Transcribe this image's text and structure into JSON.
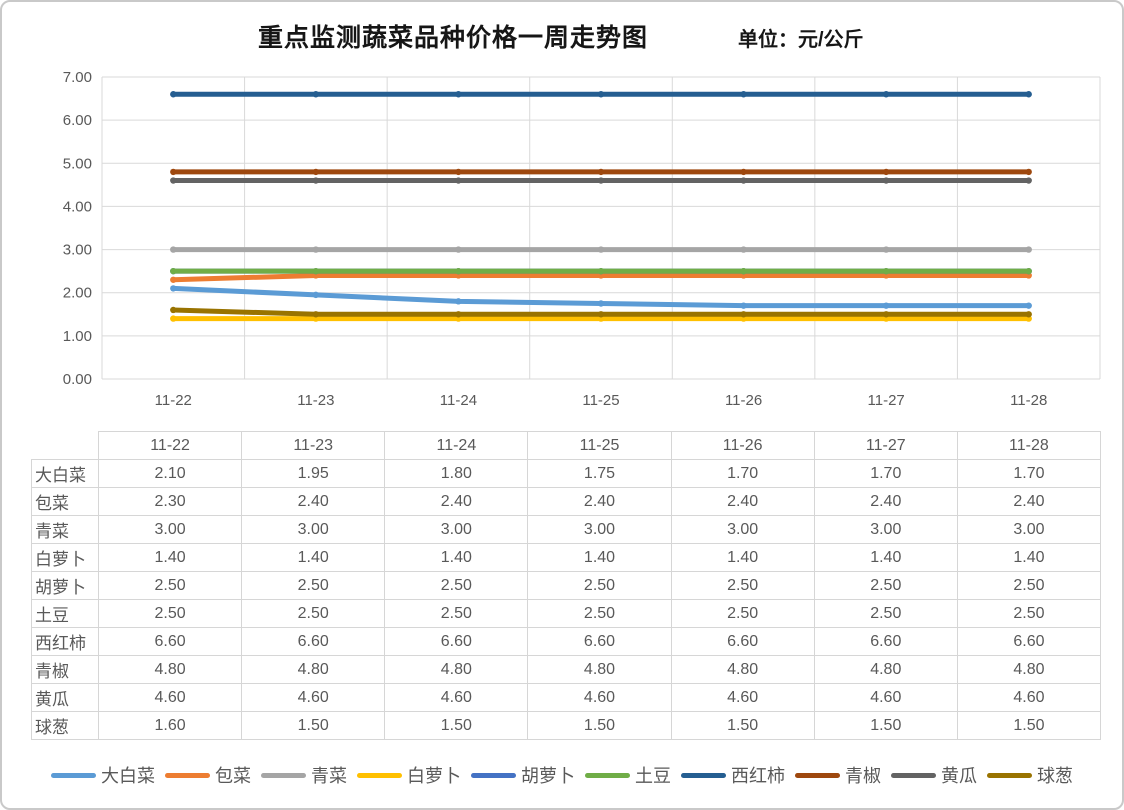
{
  "header": {
    "title": "重点监测蔬菜品种价格一周走势图",
    "unit": "单位：元/公斤"
  },
  "chart_data": {
    "type": "line",
    "title": "重点监测蔬菜品种价格一周走势图",
    "unit_label": "单位：元/公斤",
    "x": [
      "11-22",
      "11-23",
      "11-24",
      "11-25",
      "11-26",
      "11-27",
      "11-28"
    ],
    "series": [
      {
        "name": "大白菜",
        "color": "#5B9BD5",
        "values": [
          2.1,
          1.95,
          1.8,
          1.75,
          1.7,
          1.7,
          1.7
        ]
      },
      {
        "name": "包菜",
        "color": "#ED7D31",
        "values": [
          2.3,
          2.4,
          2.4,
          2.4,
          2.4,
          2.4,
          2.4
        ]
      },
      {
        "name": "青菜",
        "color": "#A5A5A5",
        "values": [
          3.0,
          3.0,
          3.0,
          3.0,
          3.0,
          3.0,
          3.0
        ]
      },
      {
        "name": "白萝卜",
        "color": "#FFC000",
        "values": [
          1.4,
          1.4,
          1.4,
          1.4,
          1.4,
          1.4,
          1.4
        ]
      },
      {
        "name": "胡萝卜",
        "color": "#4472C4",
        "values": [
          2.5,
          2.5,
          2.5,
          2.5,
          2.5,
          2.5,
          2.5
        ]
      },
      {
        "name": "土豆",
        "color": "#70AD47",
        "values": [
          2.5,
          2.5,
          2.5,
          2.5,
          2.5,
          2.5,
          2.5
        ]
      },
      {
        "name": "西红柿",
        "color": "#255E91",
        "values": [
          6.6,
          6.6,
          6.6,
          6.6,
          6.6,
          6.6,
          6.6
        ]
      },
      {
        "name": "青椒",
        "color": "#9E480E",
        "values": [
          4.8,
          4.8,
          4.8,
          4.8,
          4.8,
          4.8,
          4.8
        ]
      },
      {
        "name": "黄瓜",
        "color": "#636363",
        "values": [
          4.6,
          4.6,
          4.6,
          4.6,
          4.6,
          4.6,
          4.6
        ]
      },
      {
        "name": "球葱",
        "color": "#997300",
        "values": [
          1.6,
          1.5,
          1.5,
          1.5,
          1.5,
          1.5,
          1.5
        ]
      }
    ],
    "ylim": [
      0,
      7
    ],
    "y_ticks": [
      "0.00",
      "1.00",
      "2.00",
      "3.00",
      "4.00",
      "5.00",
      "6.00",
      "7.00"
    ],
    "grid": true,
    "legend_position": "bottom"
  },
  "table": {
    "corner": "",
    "columns": [
      "11-22",
      "11-23",
      "11-24",
      "11-25",
      "11-26",
      "11-27",
      "11-28"
    ],
    "rows": [
      {
        "label": "大白菜",
        "values": [
          "2.10",
          "1.95",
          "1.80",
          "1.75",
          "1.70",
          "1.70",
          "1.70"
        ]
      },
      {
        "label": "包菜",
        "values": [
          "2.30",
          "2.40",
          "2.40",
          "2.40",
          "2.40",
          "2.40",
          "2.40"
        ]
      },
      {
        "label": "青菜",
        "values": [
          "3.00",
          "3.00",
          "3.00",
          "3.00",
          "3.00",
          "3.00",
          "3.00"
        ]
      },
      {
        "label": "白萝卜",
        "values": [
          "1.40",
          "1.40",
          "1.40",
          "1.40",
          "1.40",
          "1.40",
          "1.40"
        ]
      },
      {
        "label": "胡萝卜",
        "values": [
          "2.50",
          "2.50",
          "2.50",
          "2.50",
          "2.50",
          "2.50",
          "2.50"
        ]
      },
      {
        "label": "土豆",
        "values": [
          "2.50",
          "2.50",
          "2.50",
          "2.50",
          "2.50",
          "2.50",
          "2.50"
        ]
      },
      {
        "label": "西红柿",
        "values": [
          "6.60",
          "6.60",
          "6.60",
          "6.60",
          "6.60",
          "6.60",
          "6.60"
        ]
      },
      {
        "label": "青椒",
        "values": [
          "4.80",
          "4.80",
          "4.80",
          "4.80",
          "4.80",
          "4.80",
          "4.80"
        ]
      },
      {
        "label": "黄瓜",
        "values": [
          "4.60",
          "4.60",
          "4.60",
          "4.60",
          "4.60",
          "4.60",
          "4.60"
        ]
      },
      {
        "label": "球葱",
        "values": [
          "1.60",
          "1.50",
          "1.50",
          "1.50",
          "1.50",
          "1.50",
          "1.50"
        ]
      }
    ]
  },
  "colors": {
    "grid": "#D9D9D9",
    "axis_text": "#595959",
    "table_border": "#D6D6D6",
    "frame_border": "#C9C9C9"
  }
}
